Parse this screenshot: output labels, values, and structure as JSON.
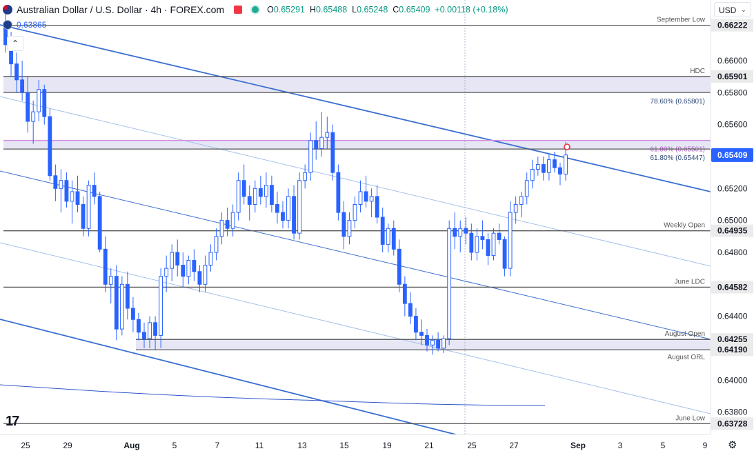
{
  "header": {
    "title": "Australian Dollar / U.S. Dollar · 4h · FOREX.com",
    "open_label": "O",
    "open": "0.65291",
    "high_label": "H",
    "high": "0.65488",
    "low_label": "L",
    "low": "0.65248",
    "close_label": "C",
    "close": "0.65409",
    "change": "+0.00118 (+0.18%)",
    "top_left_value": "0.63865",
    "currency": "USD",
    "logo_text": "TV"
  },
  "colors": {
    "candle": "#2962ff",
    "channel": "#3a6fd0",
    "channel_light": "#a6c0ea",
    "fib": "#d18ce0",
    "level": "#555555",
    "zone": "#e6e6f5",
    "last_price": "#2962ff",
    "ma": "#2f56c9"
  },
  "chart_data": {
    "type": "candlestick",
    "price_range": [
      0.6366,
      0.6638
    ],
    "y_ticks": [
      "0.66000",
      "0.65800",
      "0.65600",
      "0.65200",
      "0.65000",
      "0.64800",
      "0.64400",
      "0.64000",
      "0.63800"
    ],
    "x_ticks": [
      "25",
      "29",
      "Aug",
      "5",
      "7",
      "11",
      "13",
      "15",
      "19",
      "21",
      "25",
      "27",
      "Sep",
      "3",
      "5",
      "9"
    ],
    "last_price": "0.65409",
    "levels": [
      {
        "label": "September Low",
        "price": 0.66222,
        "tag": "0.66222"
      },
      {
        "label": "HDC",
        "price": 0.65901,
        "tag": "0.65901"
      },
      {
        "label": "78.60% (0.65801)",
        "price": 0.65801,
        "tag": ""
      },
      {
        "label": "61.80% (0.65501)",
        "price": 0.65501,
        "tag": "",
        "style": "fib"
      },
      {
        "label": "61.80% (0.65447)",
        "price": 0.65447,
        "tag": ""
      },
      {
        "label": "Weekly Open",
        "price": 0.64935,
        "tag": "0.64935"
      },
      {
        "label": "June LDC",
        "price": 0.64582,
        "tag": "0.64582"
      },
      {
        "label": "August Open",
        "price": 0.64255,
        "tag": "0.64255"
      },
      {
        "label": "August ORL",
        "price": 0.6419,
        "tag": "0.64190"
      },
      {
        "label": "June Low",
        "price": 0.63728,
        "tag": "0.63728"
      }
    ],
    "candles": [
      [
        0.6622,
        0.6632,
        0.6605,
        0.661
      ],
      [
        0.661,
        0.6618,
        0.659,
        0.6598
      ],
      [
        0.6598,
        0.6605,
        0.658,
        0.6588
      ],
      [
        0.6588,
        0.66,
        0.6575,
        0.658
      ],
      [
        0.658,
        0.659,
        0.6555,
        0.6562
      ],
      [
        0.6562,
        0.6575,
        0.6548,
        0.6568
      ],
      [
        0.6568,
        0.6588,
        0.6562,
        0.6582
      ],
      [
        0.6582,
        0.6585,
        0.656,
        0.6565
      ],
      [
        0.6565,
        0.657,
        0.6525,
        0.6528
      ],
      [
        0.6528,
        0.6535,
        0.6512,
        0.652
      ],
      [
        0.652,
        0.6532,
        0.6505,
        0.6525
      ],
      [
        0.6525,
        0.653,
        0.6508,
        0.6512
      ],
      [
        0.6512,
        0.6525,
        0.6498,
        0.6518
      ],
      [
        0.6518,
        0.6528,
        0.6505,
        0.651
      ],
      [
        0.651,
        0.6515,
        0.649,
        0.6495
      ],
      [
        0.6495,
        0.6525,
        0.649,
        0.6522
      ],
      [
        0.6522,
        0.653,
        0.651,
        0.6515
      ],
      [
        0.6515,
        0.6518,
        0.648,
        0.6482
      ],
      [
        0.6482,
        0.649,
        0.6455,
        0.646
      ],
      [
        0.646,
        0.647,
        0.6448,
        0.6465
      ],
      [
        0.6465,
        0.6472,
        0.6425,
        0.6432
      ],
      [
        0.6432,
        0.6465,
        0.6428,
        0.646
      ],
      [
        0.646,
        0.6468,
        0.6438,
        0.6445
      ],
      [
        0.6445,
        0.6452,
        0.643,
        0.6438
      ],
      [
        0.6438,
        0.6442,
        0.6425,
        0.643
      ],
      [
        0.643,
        0.6436,
        0.642,
        0.6426
      ],
      [
        0.6426,
        0.644,
        0.642,
        0.6436
      ],
      [
        0.6436,
        0.644,
        0.6419,
        0.6428
      ],
      [
        0.6428,
        0.647,
        0.642,
        0.6465
      ],
      [
        0.6465,
        0.6478,
        0.6455,
        0.647
      ],
      [
        0.647,
        0.6485,
        0.6462,
        0.648
      ],
      [
        0.648,
        0.6488,
        0.6465,
        0.6472
      ],
      [
        0.6472,
        0.648,
        0.6458,
        0.6465
      ],
      [
        0.6465,
        0.6478,
        0.646,
        0.6475
      ],
      [
        0.6475,
        0.6482,
        0.6462,
        0.6468
      ],
      [
        0.6468,
        0.6472,
        0.6455,
        0.646
      ],
      [
        0.646,
        0.6478,
        0.6455,
        0.6472
      ],
      [
        0.6472,
        0.6485,
        0.6468,
        0.648
      ],
      [
        0.648,
        0.6495,
        0.6475,
        0.649
      ],
      [
        0.649,
        0.6505,
        0.6485,
        0.65
      ],
      [
        0.65,
        0.6508,
        0.649,
        0.6495
      ],
      [
        0.6495,
        0.651,
        0.649,
        0.6505
      ],
      [
        0.6505,
        0.653,
        0.65,
        0.6525
      ],
      [
        0.6525,
        0.6535,
        0.651,
        0.6515
      ],
      [
        0.6515,
        0.6522,
        0.65,
        0.651
      ],
      [
        0.651,
        0.6525,
        0.6505,
        0.652
      ],
      [
        0.652,
        0.6528,
        0.651,
        0.6515
      ],
      [
        0.6515,
        0.653,
        0.6508,
        0.6522
      ],
      [
        0.6522,
        0.6528,
        0.6505,
        0.651
      ],
      [
        0.651,
        0.6518,
        0.6498,
        0.6505
      ],
      [
        0.6505,
        0.6512,
        0.6495,
        0.65
      ],
      [
        0.65,
        0.652,
        0.6495,
        0.6515
      ],
      [
        0.6515,
        0.6522,
        0.6488,
        0.6492
      ],
      [
        0.6492,
        0.653,
        0.6488,
        0.6525
      ],
      [
        0.6525,
        0.6535,
        0.652,
        0.653
      ],
      [
        0.653,
        0.6555,
        0.6525,
        0.655
      ],
      [
        0.655,
        0.6562,
        0.6538,
        0.6545
      ],
      [
        0.6545,
        0.6568,
        0.654,
        0.6552
      ],
      [
        0.6552,
        0.6565,
        0.6545,
        0.6555
      ],
      [
        0.6555,
        0.656,
        0.6525,
        0.653
      ],
      [
        0.653,
        0.6535,
        0.65,
        0.6505
      ],
      [
        0.6505,
        0.6512,
        0.6482,
        0.649
      ],
      [
        0.649,
        0.6505,
        0.6485,
        0.65
      ],
      [
        0.65,
        0.6515,
        0.6495,
        0.651
      ],
      [
        0.651,
        0.6525,
        0.6505,
        0.6518
      ],
      [
        0.6518,
        0.6528,
        0.6508,
        0.6512
      ],
      [
        0.6512,
        0.652,
        0.6502,
        0.6515
      ],
      [
        0.6515,
        0.6522,
        0.6498,
        0.6502
      ],
      [
        0.6502,
        0.6508,
        0.648,
        0.6485
      ],
      [
        0.6485,
        0.6498,
        0.648,
        0.6495
      ],
      [
        0.6495,
        0.65,
        0.6478,
        0.6482
      ],
      [
        0.6482,
        0.6488,
        0.6455,
        0.646
      ],
      [
        0.646,
        0.6465,
        0.644,
        0.6448
      ],
      [
        0.6448,
        0.6455,
        0.6435,
        0.644
      ],
      [
        0.644,
        0.6445,
        0.6425,
        0.643
      ],
      [
        0.643,
        0.6438,
        0.6422,
        0.6428
      ],
      [
        0.6428,
        0.6432,
        0.6418,
        0.6422
      ],
      [
        0.6422,
        0.6428,
        0.6416,
        0.6425
      ],
      [
        0.6425,
        0.643,
        0.6418,
        0.642
      ],
      [
        0.642,
        0.6428,
        0.6417,
        0.6426
      ],
      [
        0.6426,
        0.65,
        0.6422,
        0.6495
      ],
      [
        0.6495,
        0.6505,
        0.6482,
        0.649
      ],
      [
        0.649,
        0.65,
        0.648,
        0.6495
      ],
      [
        0.6495,
        0.6502,
        0.6485,
        0.6492
      ],
      [
        0.6492,
        0.6498,
        0.6475,
        0.648
      ],
      [
        0.648,
        0.6495,
        0.6475,
        0.649
      ],
      [
        0.649,
        0.65,
        0.6482,
        0.6488
      ],
      [
        0.6488,
        0.6492,
        0.6472,
        0.6478
      ],
      [
        0.6478,
        0.6495,
        0.6475,
        0.6492
      ],
      [
        0.6492,
        0.6498,
        0.6485,
        0.6488
      ],
      [
        0.6488,
        0.649,
        0.6465,
        0.647
      ],
      [
        0.647,
        0.6512,
        0.6465,
        0.6505
      ],
      [
        0.6505,
        0.6515,
        0.6498,
        0.651
      ],
      [
        0.651,
        0.6518,
        0.6502,
        0.6515
      ],
      [
        0.6515,
        0.653,
        0.651,
        0.6525
      ],
      [
        0.6525,
        0.6538,
        0.652,
        0.6532
      ],
      [
        0.6532,
        0.654,
        0.6528,
        0.6535
      ],
      [
        0.6535,
        0.654,
        0.6525,
        0.653
      ],
      [
        0.653,
        0.6542,
        0.6525,
        0.6538
      ],
      [
        0.6538,
        0.6543,
        0.653,
        0.6533
      ],
      [
        0.6533,
        0.6536,
        0.6522,
        0.6529
      ],
      [
        0.6529,
        0.6549,
        0.6525,
        0.6541
      ]
    ]
  }
}
